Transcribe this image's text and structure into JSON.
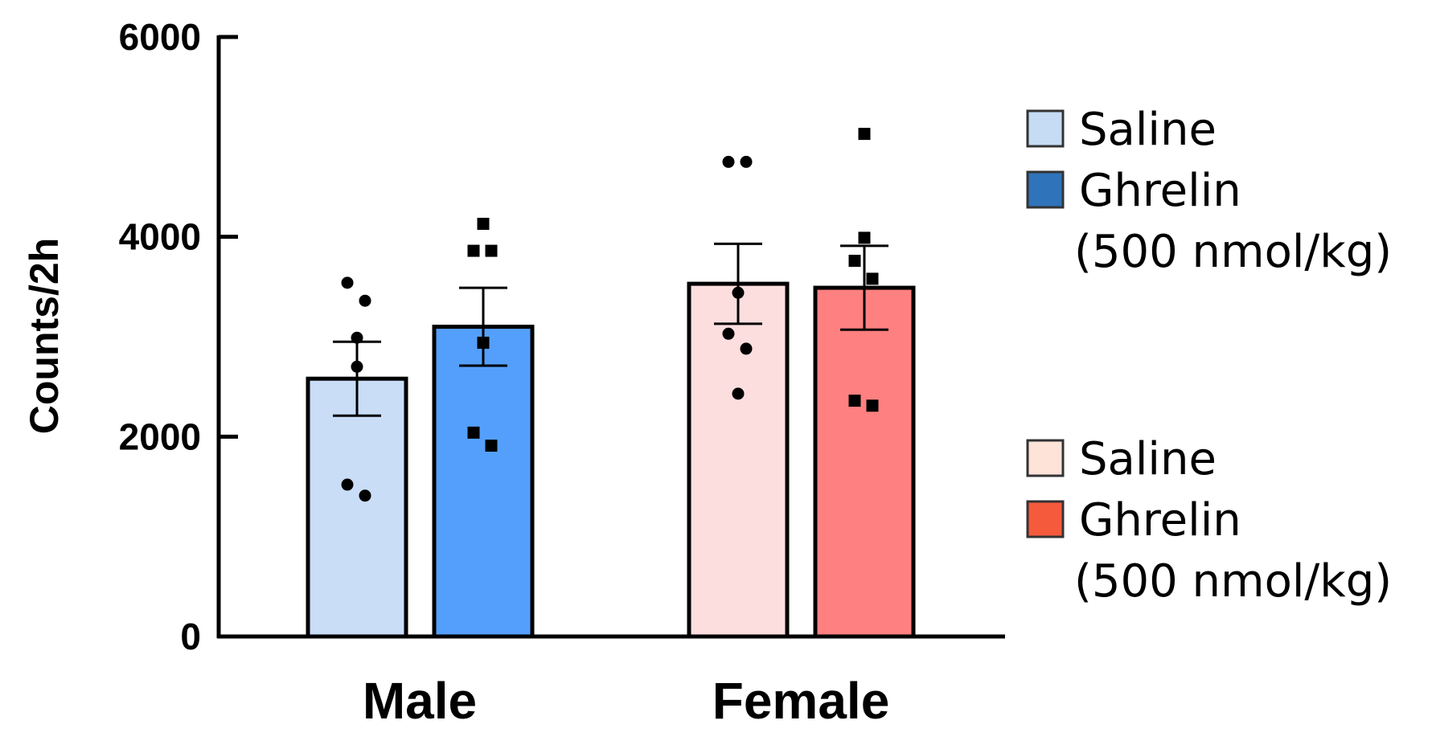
{
  "chart_data": {
    "type": "bar",
    "title": "",
    "xlabel": "",
    "ylabel": "Counts/2h",
    "ylim": [
      0,
      6000
    ],
    "yticks": [
      0,
      2000,
      4000,
      6000
    ],
    "ytick_labels": [
      "0",
      "2000",
      "4000",
      "6000"
    ],
    "grid": false,
    "categories": [
      "Male",
      "Female"
    ],
    "series": [
      {
        "name": "Saline",
        "sex": "Male",
        "category": "Male",
        "color": "#c9ddf6",
        "legend_color": "#c6dcf4",
        "marker": "circle",
        "value": 2580,
        "error": 370,
        "points": [
          3540,
          3360,
          2990,
          2700,
          1520,
          1410
        ]
      },
      {
        "name": "Ghrelin",
        "sex": "Male",
        "category": "Male",
        "color": "#559ffc",
        "legend_color": "#2f73ba",
        "marker": "square",
        "value": 3100,
        "error": 390,
        "points": [
          4130,
          3860,
          3860,
          2940,
          2040,
          1910
        ]
      },
      {
        "name": "Saline",
        "sex": "Female",
        "category": "Female",
        "color": "#fddedf",
        "legend_color": "#fde3d8",
        "marker": "circle",
        "value": 3530,
        "error": 400,
        "points": [
          4750,
          4750,
          3440,
          3030,
          2880,
          2430
        ]
      },
      {
        "name": "Ghrelin",
        "sex": "Female",
        "category": "Female",
        "color": "#fe8080",
        "legend_color": "#f55a3c",
        "marker": "square",
        "value": 3490,
        "error": 420,
        "points": [
          5030,
          3990,
          3760,
          3580,
          2360,
          2310
        ]
      }
    ],
    "legend": {
      "placement": "right",
      "groups": [
        {
          "sex": "Male",
          "entries": [
            {
              "label": "Saline",
              "subtitle": "",
              "color": "#c6dcf4"
            },
            {
              "label": "Ghrelin",
              "subtitle": "(500 nmol/kg)",
              "color": "#2f73ba"
            }
          ]
        },
        {
          "sex": "Female",
          "entries": [
            {
              "label": "Saline",
              "subtitle": "",
              "color": "#fde3d8"
            },
            {
              "label": "Ghrelin",
              "subtitle": "(500 nmol/kg)",
              "color": "#f55a3c"
            }
          ]
        }
      ]
    }
  }
}
